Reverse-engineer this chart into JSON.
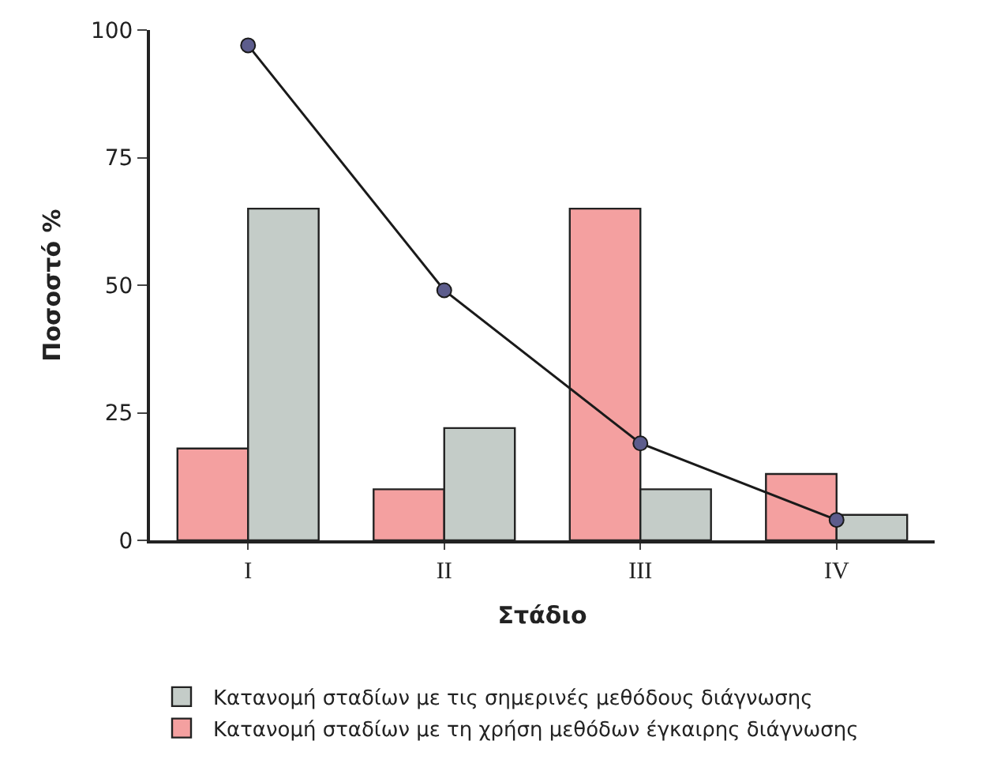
{
  "chart_data": {
    "type": "bar",
    "xlabel": "Στάδιο",
    "ylabel": "Ποσοστό %",
    "categories": [
      "I",
      "II",
      "III",
      "IV"
    ],
    "series": [
      {
        "name": "Κατανομή σταδίων με τη χρήση μεθόδων έγκαιρης διάγνωσης",
        "color": "#f4a0a0",
        "values": [
          18,
          10,
          65,
          13
        ]
      },
      {
        "name": "Κατανομή σταδίων με τις σημερινές μεθόδους διάγνωσης",
        "color": "#c4ccc8",
        "values": [
          65,
          22,
          10,
          5
        ]
      },
      {
        "type": "line",
        "color": "#1a1a1a",
        "marker": "circle",
        "values": [
          97,
          49,
          19,
          4
        ]
      }
    ],
    "ylim": [
      0,
      100
    ],
    "yticks": [
      0,
      25,
      50,
      75,
      100
    ],
    "legend": "bottom"
  }
}
